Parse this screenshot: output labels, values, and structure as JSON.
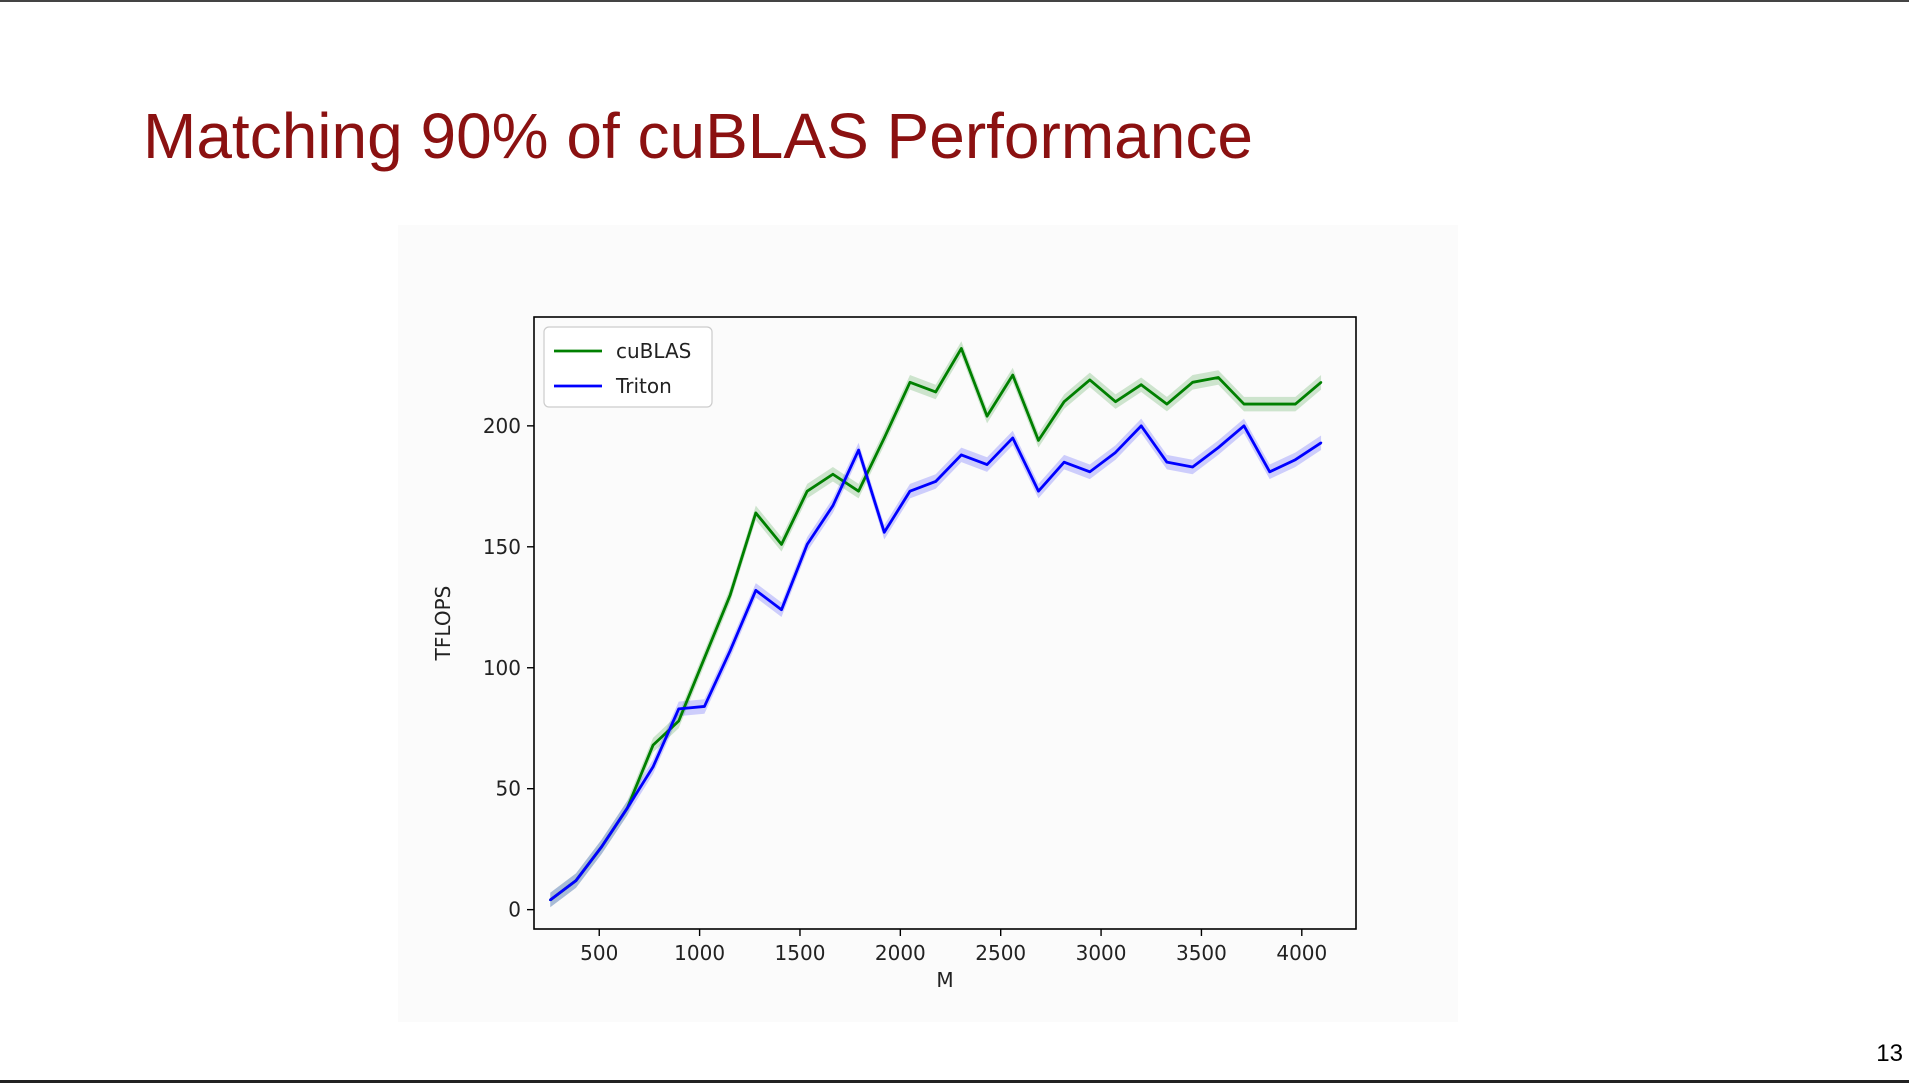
{
  "slide": {
    "title": "Matching 90% of cuBLAS Performance",
    "page_number": "13"
  },
  "colors": {
    "title": "#8b1111",
    "cublas": "#008000",
    "triton": "#0000ff"
  },
  "chart_data": {
    "type": "line",
    "xlabel": "M",
    "ylabel": "TFLOPS",
    "xlim": [
      175,
      4270
    ],
    "ylim": [
      -8,
      245
    ],
    "xticks": [
      500,
      1000,
      1500,
      2000,
      2500,
      3000,
      3500,
      4000
    ],
    "yticks": [
      0,
      50,
      100,
      150,
      200
    ],
    "grid": false,
    "legend_position": "top-left",
    "x": [
      256,
      384,
      512,
      640,
      768,
      896,
      1024,
      1152,
      1280,
      1408,
      1536,
      1664,
      1792,
      1920,
      2048,
      2176,
      2304,
      2432,
      2560,
      2688,
      2816,
      2944,
      3072,
      3200,
      3328,
      3456,
      3584,
      3712,
      3840,
      3968,
      4096
    ],
    "series": [
      {
        "name": "cuBLAS",
        "color": "#008000",
        "values": [
          4,
          12,
          26,
          42,
          68,
          78,
          104,
          130,
          164,
          151,
          173,
          180,
          173,
          195,
          218,
          214,
          232,
          204,
          221,
          194,
          210,
          219,
          210,
          217,
          209,
          218,
          220,
          209,
          209,
          209,
          218
        ],
        "band": 3
      },
      {
        "name": "Triton",
        "color": "#0000ff",
        "values": [
          4,
          12,
          26,
          42,
          59,
          83,
          84,
          107,
          132,
          124,
          151,
          167,
          190,
          156,
          173,
          177,
          188,
          184,
          195,
          173,
          185,
          181,
          189,
          200,
          185,
          183,
          191,
          200,
          181,
          186,
          193
        ],
        "band": 3
      }
    ]
  }
}
